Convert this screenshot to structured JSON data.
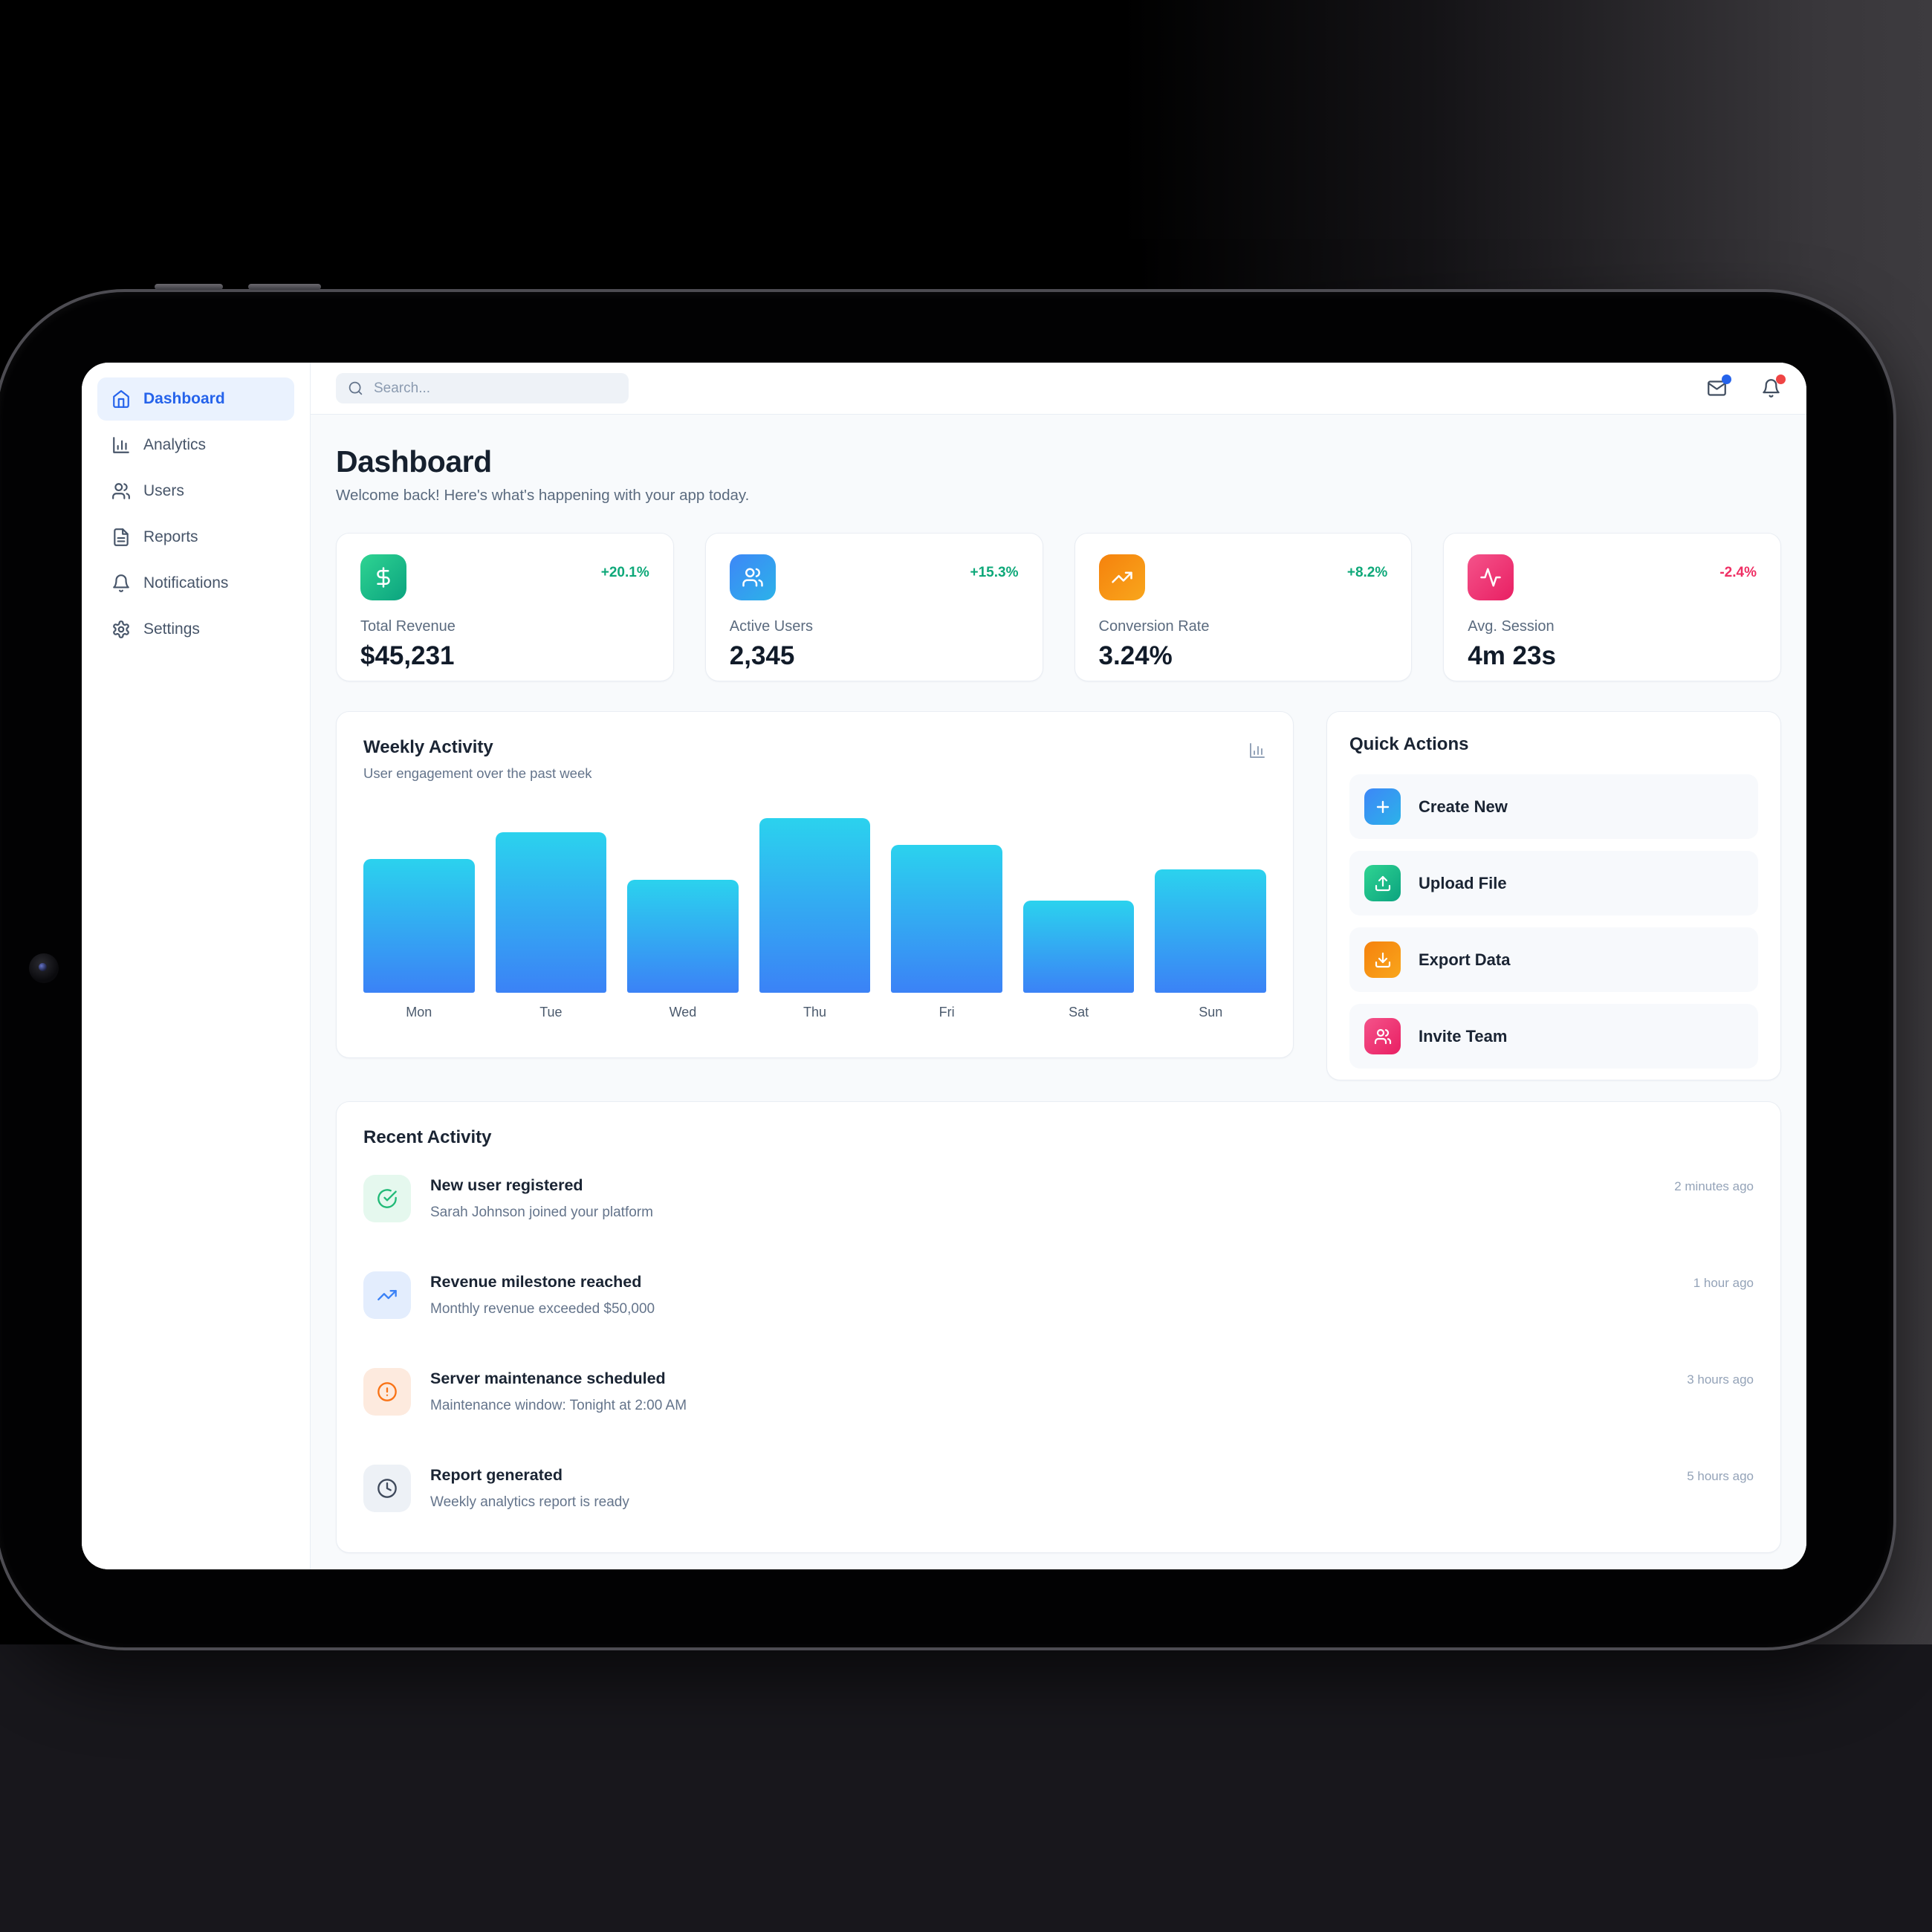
{
  "scene": {
    "background": "#000000",
    "desk_surface": "#18171c",
    "wall_right": "#39373b",
    "device": "tablet"
  },
  "sidebar": {
    "items": [
      {
        "label": "Dashboard",
        "icon": "home-icon",
        "active": true
      },
      {
        "label": "Analytics",
        "icon": "bar-chart-icon",
        "active": false
      },
      {
        "label": "Users",
        "icon": "users-icon",
        "active": false
      },
      {
        "label": "Reports",
        "icon": "file-text-icon",
        "active": false
      },
      {
        "label": "Notifications",
        "icon": "bell-icon",
        "active": false
      },
      {
        "label": "Settings",
        "icon": "gear-icon",
        "active": false
      }
    ],
    "active_color": "#2563eb",
    "active_bg": "#eaf2fe"
  },
  "topbar": {
    "search_placeholder": "Search...",
    "mail_badge_color": "#2563eb",
    "bell_badge_color": "#ef4444"
  },
  "page": {
    "title": "Dashboard",
    "subtitle": "Welcome back! Here's what's happening with your app today."
  },
  "stats": [
    {
      "label": "Total Revenue",
      "value": "$45,231",
      "change": "+20.1%",
      "direction": "up",
      "icon": "dollar-icon",
      "accent": "#10b981"
    },
    {
      "label": "Active Users",
      "value": "2,345",
      "change": "+15.3%",
      "direction": "up",
      "icon": "users-icon",
      "accent": "#3b82f6"
    },
    {
      "label": "Conversion Rate",
      "value": "3.24%",
      "change": "+8.2%",
      "direction": "up",
      "icon": "trending-up-icon",
      "accent": "#f97316"
    },
    {
      "label": "Avg. Session",
      "value": "4m 23s",
      "change": "-2.4%",
      "direction": "down",
      "icon": "activity-icon",
      "accent": "#ec4899"
    }
  ],
  "chart_data": {
    "type": "bar",
    "title": "Weekly Activity",
    "subtitle": "User engagement over the past week",
    "categories": [
      "Mon",
      "Tue",
      "Wed",
      "Thu",
      "Fri",
      "Sat",
      "Sun"
    ],
    "values": [
      65,
      78,
      55,
      85,
      72,
      45,
      60
    ],
    "xlabel": "",
    "ylabel": "",
    "ylim": [
      0,
      85
    ],
    "grid": false,
    "legend": false,
    "bar_gradient_top": "#2bd2ee",
    "bar_gradient_bottom": "#3b82f6"
  },
  "quick_actions": {
    "title": "Quick Actions",
    "items": [
      {
        "label": "Create New",
        "icon": "plus-icon",
        "accent": "#3b82f6"
      },
      {
        "label": "Upload File",
        "icon": "upload-icon",
        "accent": "#10b981"
      },
      {
        "label": "Export Data",
        "icon": "download-icon",
        "accent": "#f97316"
      },
      {
        "label": "Invite Team",
        "icon": "user-plus-icon",
        "accent": "#ec4899"
      }
    ]
  },
  "recent_activity": {
    "title": "Recent Activity",
    "items": [
      {
        "title": "New user registered",
        "description": "Sarah Johnson joined your platform",
        "time": "2 minutes ago",
        "icon": "check-circle-icon",
        "tone": "green"
      },
      {
        "title": "Revenue milestone reached",
        "description": "Monthly revenue exceeded $50,000",
        "time": "1 hour ago",
        "icon": "trending-up-icon",
        "tone": "blue"
      },
      {
        "title": "Server maintenance scheduled",
        "description": "Maintenance window: Tonight at 2:00 AM",
        "time": "3 hours ago",
        "icon": "alert-circle-icon",
        "tone": "orange"
      },
      {
        "title": "Report generated",
        "description": "Weekly analytics report is ready",
        "time": "5 hours ago",
        "icon": "clock-icon",
        "tone": "gray"
      }
    ]
  }
}
